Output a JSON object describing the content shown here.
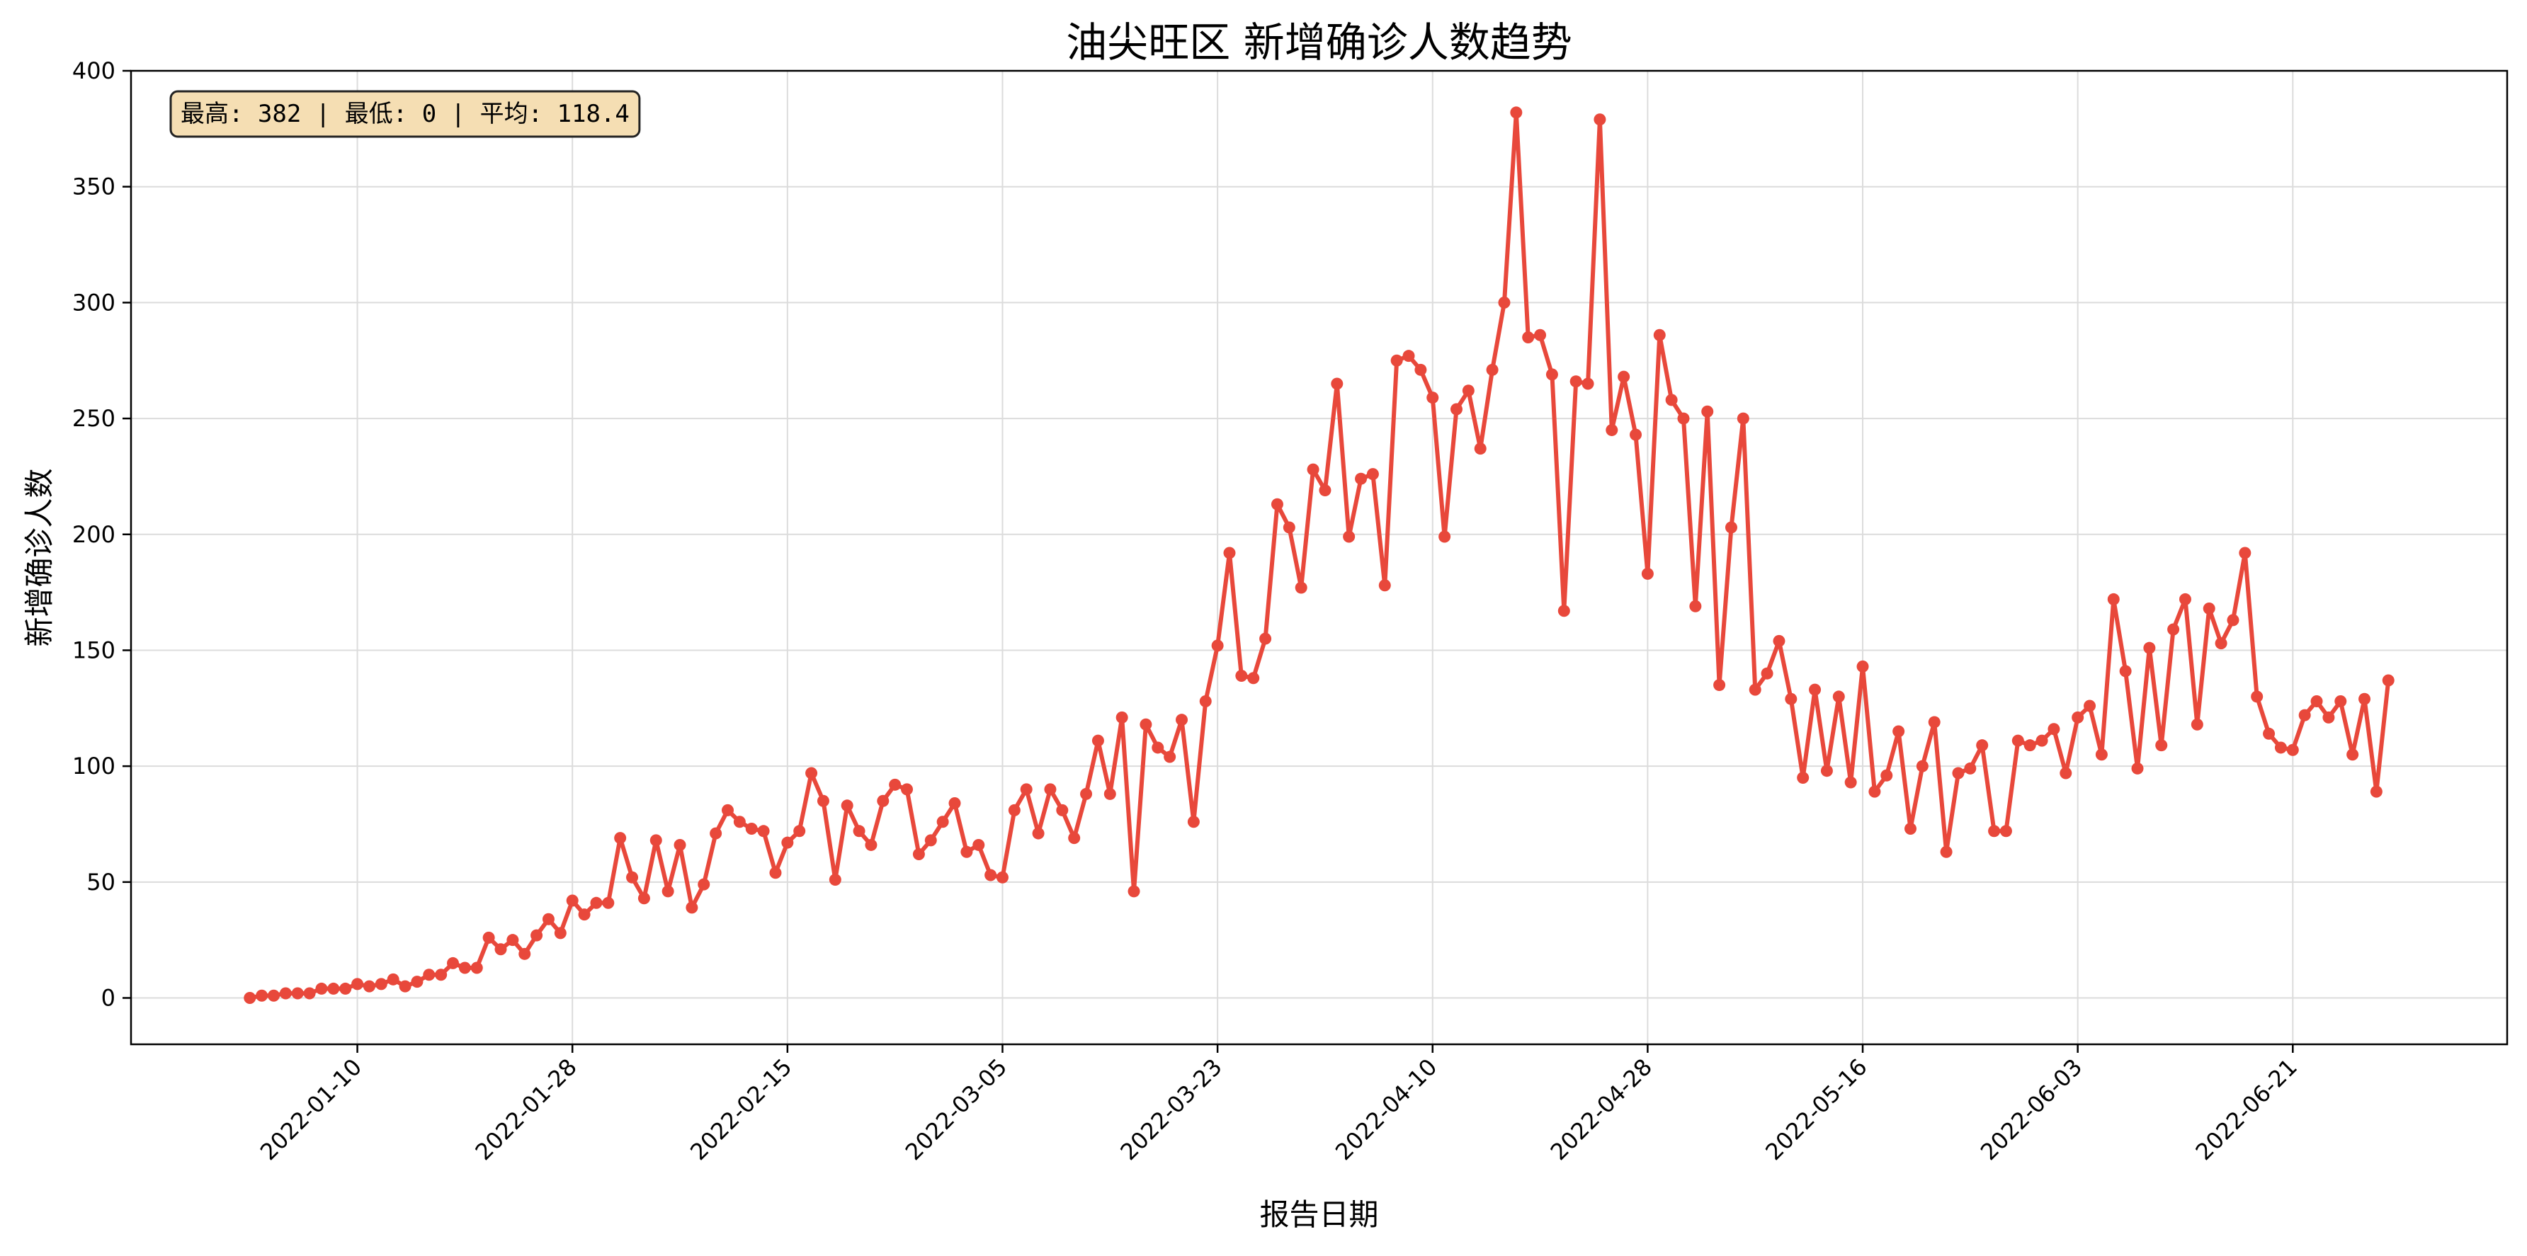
{
  "chart_data": {
    "type": "line",
    "title": "油尖旺区 新增确诊人数趋势",
    "xlabel": "报告日期",
    "ylabel": "新增确诊人数",
    "stats_text": "最高: 382 | 最低: 0 | 平均: 118.4",
    "x_start": "2022-01-01",
    "x_ticks": [
      "2022-01-10",
      "2022-01-28",
      "2022-02-15",
      "2022-03-05",
      "2022-03-23",
      "2022-04-10",
      "2022-04-28",
      "2022-05-16",
      "2022-06-03",
      "2022-06-21"
    ],
    "y_ticks": [
      "0",
      "50",
      "100",
      "150",
      "200",
      "250",
      "300",
      "350",
      "400"
    ],
    "ylim": [
      -20,
      400
    ],
    "grid": true,
    "line_color": "#e8483b",
    "series": [
      {
        "name": "",
        "values": [
          0,
          1,
          1,
          2,
          2,
          2,
          4,
          4,
          4,
          6,
          5,
          6,
          8,
          5,
          7,
          10,
          10,
          15,
          13,
          13,
          26,
          21,
          25,
          19,
          27,
          34,
          28,
          42,
          36,
          41,
          41,
          69,
          52,
          43,
          68,
          46,
          66,
          39,
          49,
          71,
          81,
          76,
          73,
          72,
          54,
          67,
          72,
          97,
          85,
          51,
          83,
          72,
          66,
          85,
          92,
          90,
          62,
          68,
          76,
          84,
          63,
          66,
          53,
          52,
          81,
          90,
          71,
          90,
          81,
          69,
          88,
          111,
          88,
          121,
          46,
          118,
          108,
          104,
          120,
          76,
          128,
          152,
          192,
          139,
          138,
          155,
          213,
          203,
          177,
          228,
          219,
          265,
          199,
          224,
          226,
          178,
          275,
          277,
          271,
          259,
          199,
          254,
          262,
          237,
          271,
          300,
          382,
          285,
          286,
          269,
          167,
          266,
          265,
          379,
          245,
          268,
          243,
          183,
          286,
          258,
          250,
          169,
          253,
          135,
          203,
          250,
          133,
          140,
          154,
          129,
          95,
          133,
          98,
          130,
          93,
          143,
          89,
          96,
          115,
          73,
          100,
          119,
          63,
          97,
          99,
          109,
          72,
          72,
          111,
          109,
          111,
          116,
          97,
          121,
          126,
          105,
          172,
          141,
          99,
          151,
          109,
          159,
          172,
          118,
          168,
          153,
          163,
          192,
          130,
          114,
          108,
          107,
          122,
          128,
          121,
          128,
          105,
          129,
          89,
          137
        ]
      }
    ]
  }
}
